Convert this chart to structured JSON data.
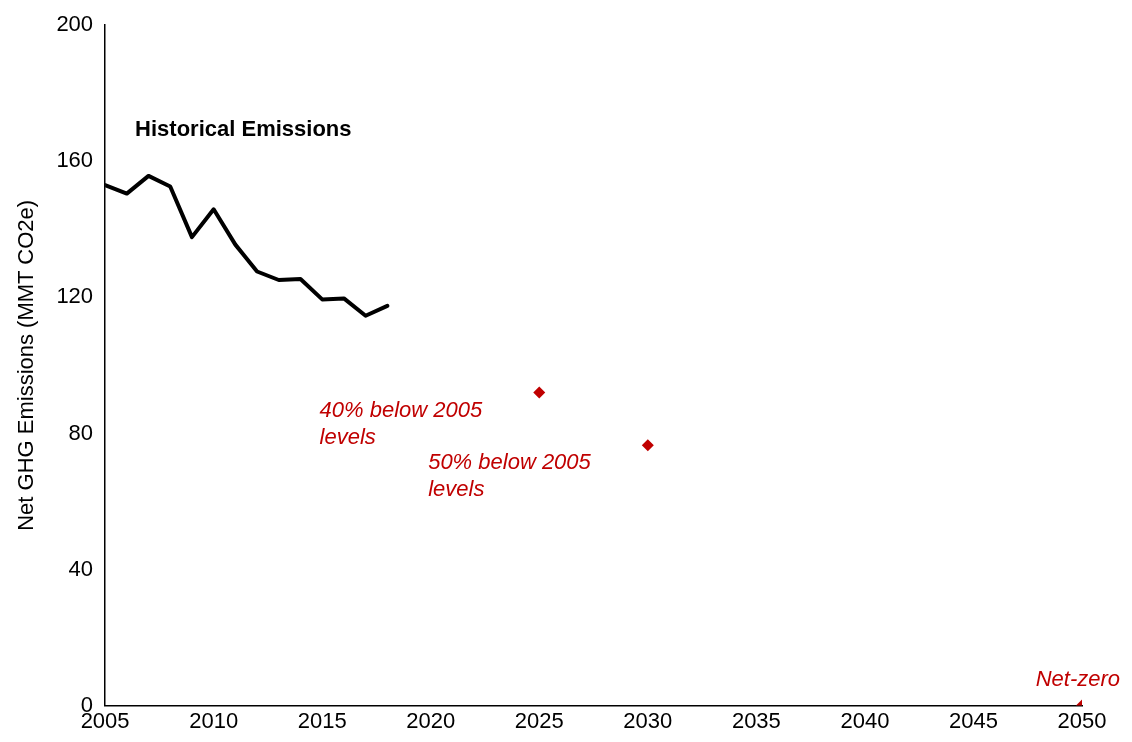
{
  "chart_data": {
    "type": "line",
    "ylabel": "Net GHG Emissions (MMT CO2e)",
    "xlim": [
      2005,
      2050
    ],
    "xticks": [
      2005,
      2010,
      2015,
      2020,
      2025,
      2030,
      2035,
      2040,
      2045,
      2050
    ],
    "ylim": [
      0,
      200
    ],
    "yticks": [
      0,
      40,
      80,
      120,
      160,
      200
    ],
    "grid": false,
    "legend": false,
    "series": [
      {
        "type": "line",
        "color": "#000000",
        "marker": "none",
        "x": [
          2005,
          2006,
          2007,
          2008,
          2009,
          2010,
          2011,
          2012,
          2013,
          2014,
          2015,
          2016,
          2017,
          2018
        ],
        "values": [
          153,
          150.5,
          155.7,
          152.6,
          137.7,
          145.9,
          135.5,
          127.6,
          125.1,
          125.4,
          119.4,
          119.7,
          114.6,
          117.5
        ]
      },
      {
        "type": "scatter",
        "color": "#c00000",
        "marker": "diamond",
        "x": [
          2025,
          2030,
          2050
        ],
        "values": [
          92,
          76.5,
          0
        ]
      }
    ],
    "annotations": [
      "Historical Emissions",
      {
        "text": "40% below 2005 levels",
        "x": 2025,
        "y": 92
      },
      {
        "text": "50% below 2005 levels",
        "x": 2030,
        "y": 76.5
      },
      {
        "text": "Net-zero",
        "x": 2050,
        "y": 0
      }
    ]
  }
}
